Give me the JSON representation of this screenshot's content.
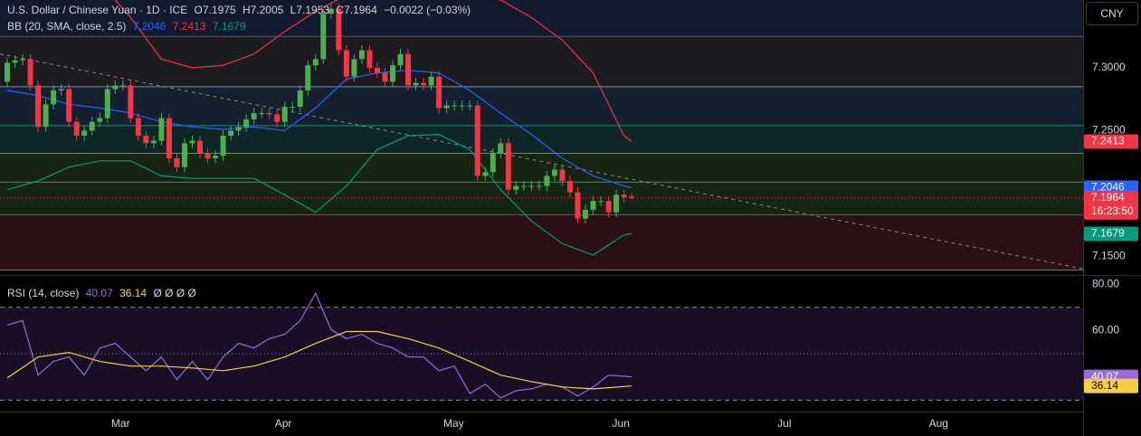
{
  "chart_data": [
    {
      "type": "candlestick",
      "title": "U.S. Dollar / Chinese Yuan · 1D · ICE",
      "last_bar_labels": [
        "O",
        "H",
        "L",
        "C"
      ],
      "change": "−0.0022 (−0.03%)",
      "countdown": "16:23:50",
      "up_color": "#4caf50",
      "down_color": "#f23645",
      "open": [
        7.289,
        7.304,
        7.306,
        7.307,
        7.286,
        7.253,
        7.271,
        7.282,
        7.283,
        7.257,
        7.246,
        7.25,
        7.257,
        7.26,
        7.283,
        7.286,
        7.286,
        7.26,
        7.246,
        7.24,
        7.242,
        7.26,
        7.228,
        7.221,
        7.24,
        7.242,
        7.232,
        7.228,
        7.23,
        7.246,
        7.25,
        7.253,
        7.259,
        7.264,
        7.264,
        7.263,
        7.257,
        7.269,
        7.269,
        7.282,
        7.302,
        7.307,
        7.343,
        7.347,
        7.314,
        7.293,
        7.307,
        7.314,
        7.3,
        7.296,
        7.289,
        7.302,
        7.311,
        7.286,
        7.288,
        7.286,
        7.293,
        7.268,
        7.27,
        7.27,
        7.27,
        7.27,
        7.214,
        7.217,
        7.232,
        7.24,
        7.203,
        7.206,
        7.206,
        7.206,
        7.206,
        7.214,
        7.219,
        7.21,
        7.201,
        7.18,
        7.187,
        7.194,
        7.194,
        7.185,
        7.199,
        7.1975
      ],
      "high": [
        7.308,
        7.31,
        7.311,
        7.311,
        7.29,
        7.275,
        7.286,
        7.287,
        7.287,
        7.261,
        7.254,
        7.261,
        7.264,
        7.287,
        7.29,
        7.29,
        7.29,
        7.264,
        7.25,
        7.246,
        7.264,
        7.264,
        7.232,
        7.244,
        7.246,
        7.246,
        7.236,
        7.234,
        7.25,
        7.254,
        7.257,
        7.263,
        7.268,
        7.268,
        7.268,
        7.267,
        7.273,
        7.273,
        7.286,
        7.306,
        7.311,
        7.347,
        7.351,
        7.351,
        7.318,
        7.311,
        7.318,
        7.318,
        7.304,
        7.3,
        7.306,
        7.315,
        7.315,
        7.292,
        7.292,
        7.297,
        7.297,
        7.274,
        7.274,
        7.274,
        7.274,
        7.274,
        7.221,
        7.236,
        7.244,
        7.244,
        7.21,
        7.21,
        7.21,
        7.21,
        7.218,
        7.223,
        7.223,
        7.214,
        7.205,
        7.191,
        7.198,
        7.198,
        7.198,
        7.203,
        7.203,
        7.2005
      ],
      "low": [
        7.285,
        7.3,
        7.302,
        7.282,
        7.249,
        7.249,
        7.267,
        7.278,
        7.253,
        7.242,
        7.242,
        7.246,
        7.253,
        7.256,
        7.279,
        7.282,
        7.256,
        7.242,
        7.236,
        7.236,
        7.238,
        7.224,
        7.217,
        7.217,
        7.236,
        7.228,
        7.224,
        7.224,
        7.226,
        7.242,
        7.246,
        7.249,
        7.255,
        7.26,
        7.259,
        7.253,
        7.253,
        7.265,
        7.265,
        7.278,
        7.298,
        7.303,
        7.339,
        7.31,
        7.289,
        7.289,
        7.303,
        7.296,
        7.292,
        7.285,
        7.285,
        7.298,
        7.282,
        7.282,
        7.282,
        7.282,
        7.264,
        7.264,
        7.266,
        7.266,
        7.266,
        7.21,
        7.21,
        7.213,
        7.228,
        7.199,
        7.199,
        7.202,
        7.202,
        7.202,
        7.202,
        7.21,
        7.206,
        7.197,
        7.176,
        7.176,
        7.183,
        7.19,
        7.181,
        7.181,
        7.193,
        7.1953
      ],
      "close": [
        7.304,
        7.306,
        7.307,
        7.286,
        7.253,
        7.271,
        7.282,
        7.283,
        7.257,
        7.246,
        7.25,
        7.257,
        7.26,
        7.283,
        7.286,
        7.286,
        7.26,
        7.246,
        7.24,
        7.242,
        7.26,
        7.228,
        7.221,
        7.24,
        7.242,
        7.232,
        7.228,
        7.23,
        7.246,
        7.25,
        7.253,
        7.259,
        7.264,
        7.264,
        7.263,
        7.257,
        7.269,
        7.269,
        7.282,
        7.302,
        7.307,
        7.343,
        7.347,
        7.314,
        7.293,
        7.307,
        7.314,
        7.3,
        7.296,
        7.289,
        7.302,
        7.311,
        7.286,
        7.288,
        7.286,
        7.293,
        7.268,
        7.27,
        7.27,
        7.27,
        7.27,
        7.214,
        7.217,
        7.232,
        7.24,
        7.203,
        7.206,
        7.206,
        7.206,
        7.206,
        7.214,
        7.219,
        7.21,
        7.201,
        7.18,
        7.187,
        7.194,
        7.194,
        7.185,
        7.199,
        7.197,
        7.1964
      ],
      "indicator": {
        "name": "BB (20, SMA, close, 2.5)",
        "lines": [
          {
            "color": "#2962ff",
            "x": [
              0,
              4,
              8,
              12,
              16,
              20,
              24,
              28,
              32,
              36,
              40,
              44,
              48,
              52,
              56,
              60,
              64,
              68,
              72,
              76,
              80,
              81
            ],
            "values": [
              7.282,
              7.278,
              7.271,
              7.268,
              7.264,
              7.257,
              7.253,
              7.251,
              7.253,
              7.25,
              7.268,
              7.291,
              7.296,
              7.298,
              7.296,
              7.282,
              7.264,
              7.247,
              7.228,
              7.214,
              7.206,
              7.2046
            ]
          },
          {
            "color": "#f23645",
            "x": [
              0,
              4,
              8,
              12,
              16,
              20,
              24,
              28,
              32,
              36,
              40,
              44,
              48,
              52,
              56,
              60,
              64,
              68,
              72,
              76,
              80,
              81
            ],
            "values": [
              7.376,
              7.383,
              7.379,
              7.368,
              7.34,
              7.307,
              7.3,
              7.302,
              7.311,
              7.329,
              7.345,
              7.358,
              7.365,
              7.365,
              7.361,
              7.358,
              7.354,
              7.34,
              7.322,
              7.296,
              7.246,
              7.2413
            ]
          },
          {
            "color": "#089981",
            "x": [
              0,
              4,
              8,
              12,
              16,
              20,
              24,
              28,
              32,
              36,
              40,
              44,
              48,
              52,
              56,
              60,
              64,
              68,
              72,
              76,
              80,
              81
            ],
            "values": [
              7.203,
              7.21,
              7.221,
              7.226,
              7.226,
              7.214,
              7.212,
              7.212,
              7.212,
              7.199,
              7.185,
              7.206,
              7.235,
              7.246,
              7.247,
              7.235,
              7.203,
              7.178,
              7.16,
              7.151,
              7.167,
              7.1679
            ]
          }
        ]
      },
      "trendline": {
        "color": "#8a8a8a",
        "x": [
          -0.94,
          139.55
        ],
        "values": [
          7.311,
          7.14
        ]
      },
      "zones": [
        {
          "from": 7.354,
          "to": 7.325,
          "color": "#131a2e"
        },
        {
          "from": 7.325,
          "to": 7.285,
          "color": "#1b1b20"
        },
        {
          "from": 7.285,
          "to": 7.254,
          "color": "#14202e"
        },
        {
          "from": 7.254,
          "to": 7.232,
          "color": "#0e2626"
        },
        {
          "from": 7.232,
          "to": 7.183,
          "color": "#152413"
        },
        {
          "from": 7.183,
          "to": 7.139,
          "color": "#2a0f14"
        }
      ],
      "levels": [
        {
          "value": 7.325,
          "color": "#6b6f7a"
        },
        {
          "value": 7.285,
          "color": "#7fb3e0"
        },
        {
          "value": 7.254,
          "color": "#26a69a"
        },
        {
          "value": 7.232,
          "color": "#66bb6a"
        },
        {
          "value": 7.209,
          "color": "#4caf50"
        },
        {
          "value": 7.183,
          "color": "#e53935"
        },
        {
          "value": 7.139,
          "color": "#9a9a9a"
        }
      ],
      "xlim": [
        -0.94,
        139.55
      ],
      "ylim": [
        7.138,
        7.354
      ],
      "yticks": [
        {
          "value": 7.3,
          "label": "7.3000"
        },
        {
          "value": 7.25,
          "label": "7.2500"
        },
        {
          "value": 7.15,
          "label": "7.1500"
        }
      ]
    },
    {
      "type": "line",
      "title": "RSI (14, close)",
      "extra": "Ø Ø Ø Ø",
      "series": [
        {
          "color": "#9c6ade",
          "x": [
            0,
            2,
            4,
            6,
            8,
            10,
            12,
            14,
            16,
            18,
            20,
            22,
            24,
            26,
            28,
            30,
            32,
            34,
            36,
            38,
            40,
            42,
            44,
            46,
            48,
            50,
            52,
            54,
            56,
            58,
            60,
            62,
            64,
            66,
            68,
            70,
            72,
            74,
            76,
            78,
            81
          ],
          "values": [
            62.4,
            64.3,
            40.8,
            46.7,
            48.6,
            40.8,
            52.5,
            54.5,
            48.6,
            42.7,
            48.6,
            38.8,
            46.7,
            38.8,
            48.6,
            54.5,
            52.5,
            56.5,
            58.4,
            64.3,
            76.1,
            60.4,
            56.5,
            58.4,
            54.5,
            52.5,
            48.6,
            48.6,
            42.7,
            44.7,
            32.9,
            36.9,
            31.0,
            34.1,
            34.9,
            36.9,
            35.7,
            31.8,
            35.7,
            40.8,
            40.07
          ]
        },
        {
          "color": "#f5d142",
          "x": [
            0,
            4,
            8,
            12,
            16,
            20,
            24,
            28,
            32,
            36,
            40,
            44,
            48,
            52,
            56,
            60,
            64,
            68,
            72,
            76,
            81
          ],
          "values": [
            39.6,
            48.6,
            50.6,
            46.7,
            44.7,
            44.7,
            43.9,
            42.7,
            44.7,
            48.6,
            54.5,
            59.6,
            59.6,
            56.5,
            52.5,
            46.7,
            40.8,
            38.0,
            35.7,
            34.9,
            36.14
          ]
        }
      ],
      "levels": [
        70,
        50,
        30
      ],
      "xlim": [
        -0.94,
        139.55
      ],
      "ylim": [
        25.1,
        82
      ],
      "yticks": [
        {
          "value": 80,
          "label": "80.00"
        },
        {
          "value": 60,
          "label": "60.00"
        }
      ],
      "xticks": [
        {
          "value": 14.7,
          "label": "Mar"
        },
        {
          "value": 35.8,
          "label": "Apr"
        },
        {
          "value": 57.9,
          "label": "May"
        },
        {
          "value": 79.6,
          "label": "Jun"
        },
        {
          "value": 100.8,
          "label": "Jul"
        },
        {
          "value": 120.8,
          "label": "Aug"
        }
      ]
    }
  ],
  "currency": "CNY"
}
